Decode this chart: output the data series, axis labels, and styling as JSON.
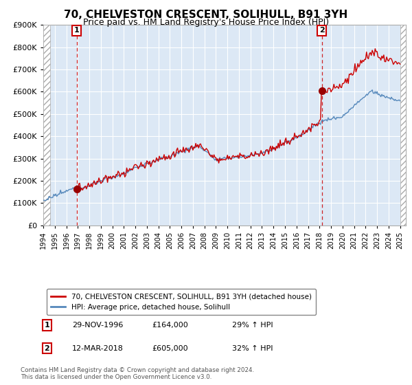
{
  "title": "70, CHELVESTON CRESCENT, SOLIHULL, B91 3YH",
  "subtitle": "Price paid vs. HM Land Registry's House Price Index (HPI)",
  "sale1_label": "29-NOV-1996",
  "sale1_price": 164000,
  "sale1_hpi_pct": "29% ↑ HPI",
  "sale2_label": "12-MAR-2018",
  "sale2_price": 605000,
  "sale2_hpi_pct": "32% ↑ HPI",
  "legend1": "70, CHELVESTON CRESCENT, SOLIHULL, B91 3YH (detached house)",
  "legend2": "HPI: Average price, detached house, Solihull",
  "footer": "Contains HM Land Registry data © Crown copyright and database right 2024.\nThis data is licensed under the Open Government Licence v3.0.",
  "line1_color": "#cc0000",
  "line2_color": "#5588bb",
  "plot_bg_color": "#dce8f5",
  "grid_color": "#ffffff",
  "bg_color": "#ffffff",
  "ylim": [
    0,
    900000
  ],
  "yticks": [
    0,
    100000,
    200000,
    300000,
    400000,
    500000,
    600000,
    700000,
    800000,
    900000
  ],
  "sale1_year_float": 1996.9,
  "sale2_year_float": 2018.2
}
